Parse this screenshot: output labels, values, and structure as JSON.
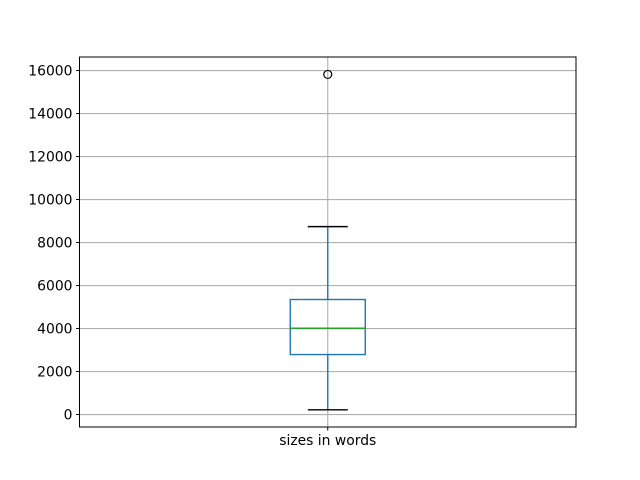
{
  "figure": {
    "background": "#ffffff"
  },
  "chart_data": {
    "type": "box",
    "categories": [
      "sizes in words"
    ],
    "series": [
      {
        "name": "sizes in words",
        "whisker_low": 220,
        "q1": 2790,
        "median": 4010,
        "q3": 5350,
        "whisker_high": 8740,
        "outliers": [
          15820
        ]
      }
    ],
    "title": "",
    "xlabel": "",
    "ylabel": "",
    "ylim": [
      -580,
      16630
    ],
    "yticks": [
      0,
      2000,
      4000,
      6000,
      8000,
      10000,
      12000,
      14000,
      16000
    ],
    "grid": true,
    "legend": false,
    "colors": {
      "box": "#1f77b4",
      "whisker": "#1f77b4",
      "median": "#2ca02c",
      "cap": "#000000",
      "outlier_edge": "#000000",
      "grid": "#b0b0b0",
      "spine": "#000000",
      "text": "#000000",
      "background": "#ffffff"
    }
  }
}
